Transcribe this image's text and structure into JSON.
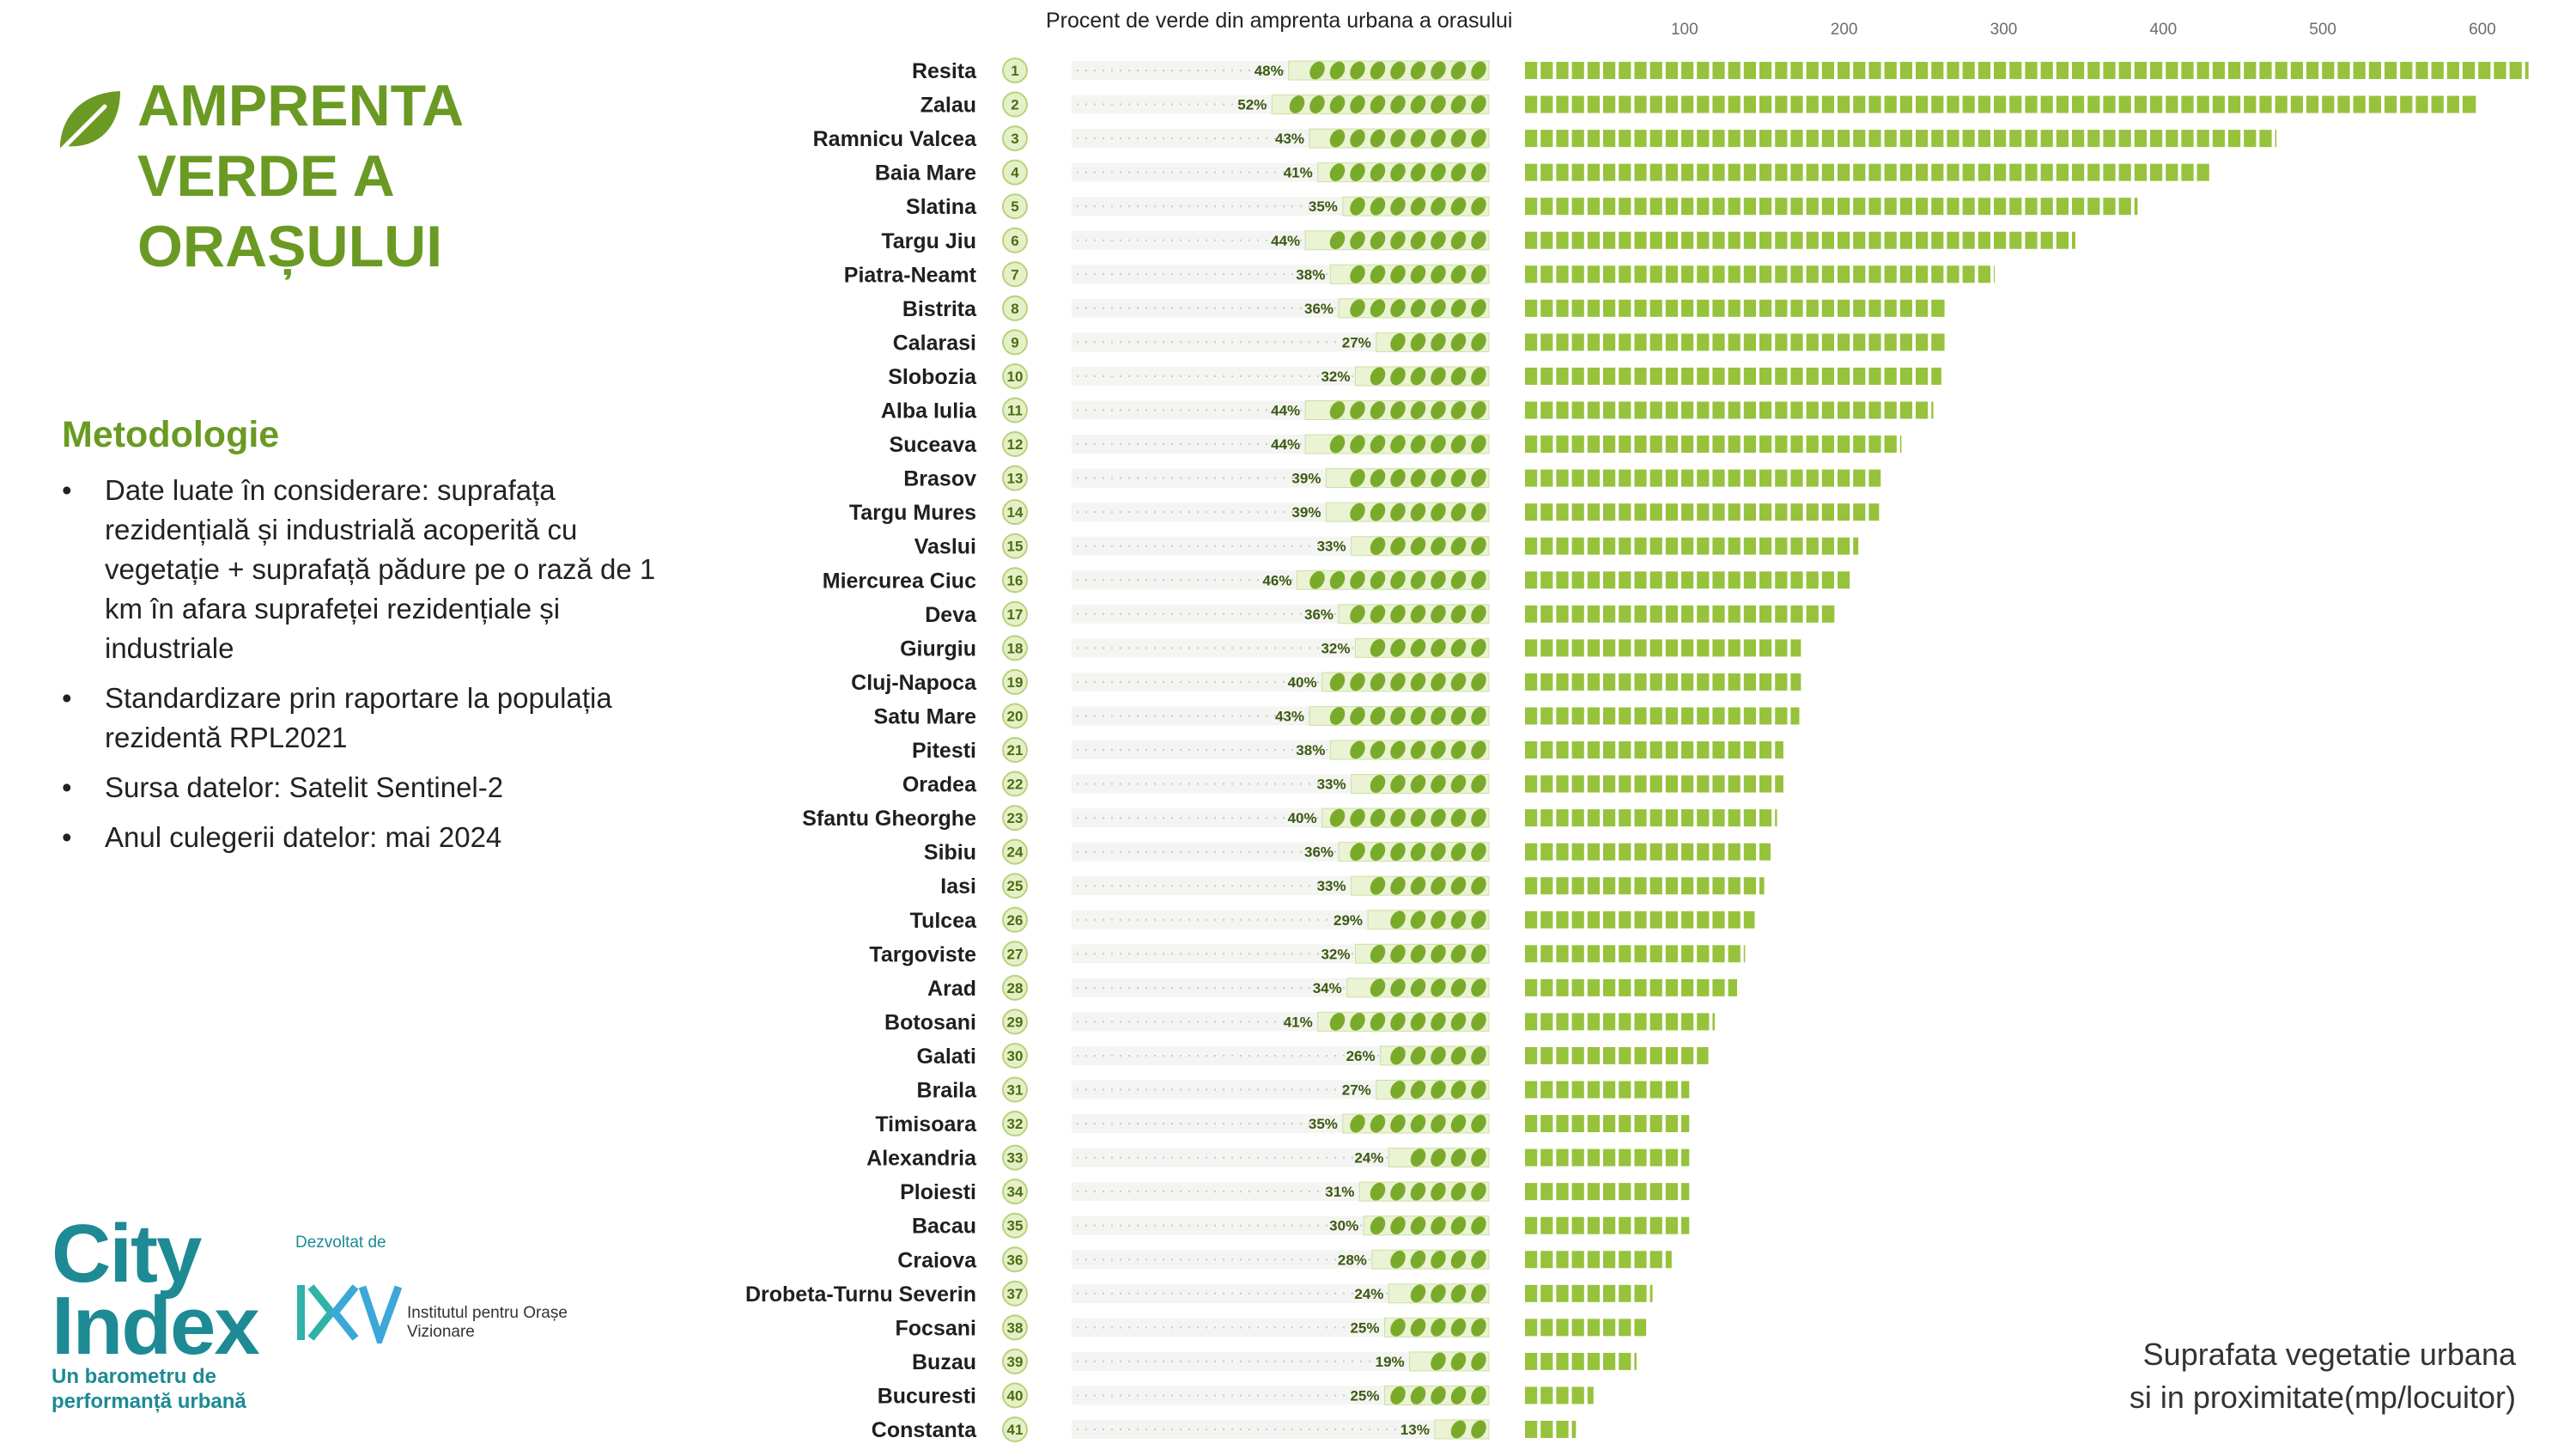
{
  "title": "AMPRENTA VERDE A ORAȘULUI",
  "methodology": {
    "heading": "Metodologie",
    "items": [
      "Date luate în considerare: suprafața rezidențială și industrială acoperită cu vegetație + suprafață pădure pe o rază de 1 km în afara suprafeței rezidențiale și industriale",
      "Standardizare prin raportare la populația rezidentă RPL2021",
      "Sursa datelor: Satelit Sentinel-2",
      "Anul culegerii datelor: mai 2024"
    ]
  },
  "branding": {
    "name_line1": "City",
    "name_line2": "Index",
    "tagline": "Un barometru de performanță urbană",
    "developed_by": "Dezvoltat de",
    "institute": "Institutul pentru Orașe Vizionare"
  },
  "colors": {
    "accent": "#6a9a23",
    "bar": "#97c23c",
    "leaf": "#7aaa2a",
    "brand": "#1d8a94"
  },
  "chart_data": [
    {
      "type": "bar",
      "orientation": "horizontal",
      "title": "Procent de verde din  amprenta urbana a orasului",
      "unit": "%",
      "categories": [
        "Resita",
        "Zalau",
        "Ramnicu Valcea",
        "Baia Mare",
        "Slatina",
        "Targu Jiu",
        "Piatra-Neamt",
        "Bistrita",
        "Calarasi",
        "Slobozia",
        "Alba Iulia",
        "Suceava",
        "Brasov",
        "Targu Mures",
        "Vaslui",
        "Miercurea Ciuc",
        "Deva",
        "Giurgiu",
        "Cluj-Napoca",
        "Satu Mare",
        "Pitesti",
        "Oradea",
        "Sfantu Gheorghe",
        "Sibiu",
        "Iasi",
        "Tulcea",
        "Targoviste",
        "Arad",
        "Botosani",
        "Galati",
        "Braila",
        "Timisoara",
        "Alexandria",
        "Ploiesti",
        "Bacau",
        "Craiova",
        "Drobeta-Turnu Severin",
        "Focsani",
        "Buzau",
        "Bucuresti",
        "Constanta"
      ],
      "ranks": [
        1,
        2,
        3,
        4,
        5,
        6,
        7,
        8,
        9,
        10,
        11,
        12,
        13,
        14,
        15,
        16,
        17,
        18,
        19,
        20,
        21,
        22,
        23,
        24,
        25,
        26,
        27,
        28,
        29,
        30,
        31,
        32,
        33,
        34,
        35,
        36,
        37,
        38,
        39,
        40,
        41
      ],
      "values": [
        48,
        52,
        43,
        41,
        35,
        44,
        38,
        36,
        27,
        32,
        44,
        44,
        39,
        39,
        33,
        46,
        36,
        32,
        40,
        43,
        38,
        33,
        40,
        36,
        33,
        29,
        32,
        34,
        41,
        26,
        27,
        35,
        24,
        31,
        30,
        28,
        24,
        25,
        19,
        25,
        13
      ],
      "data_labels": [
        "48%",
        "52%",
        "43%",
        "41%",
        "35%",
        "44%",
        "38%",
        "36%",
        "27%",
        "32%",
        "44%",
        "44%",
        "39%",
        "39%",
        "33%",
        "46%",
        "36%",
        "32%",
        "40%",
        "43%",
        "38%",
        "33%",
        "40%",
        "36%",
        "33%",
        "29%",
        "32%",
        "34%",
        "41%",
        "26%",
        "27%",
        "35%",
        "24%",
        "31%",
        "30%",
        "28%",
        "24%",
        "25%",
        "19%",
        "25%",
        "13%"
      ],
      "xlim": [
        0,
        100
      ],
      "legend": "none"
    },
    {
      "type": "bar",
      "orientation": "horizontal",
      "title": "Suprafata vegetatie urbana si in proximitate(mp/locuitor)",
      "title_line1": "Suprafata vegetatie urbana",
      "title_line2": "si in proximitate(mp/locuitor)",
      "categories": [
        "Resita",
        "Zalau",
        "Ramnicu Valcea",
        "Baia Mare",
        "Slatina",
        "Targu Jiu",
        "Piatra-Neamt",
        "Bistrita",
        "Calarasi",
        "Slobozia",
        "Alba Iulia",
        "Suceava",
        "Brasov",
        "Targu Mures",
        "Vaslui",
        "Miercurea Ciuc",
        "Deva",
        "Giurgiu",
        "Cluj-Napoca",
        "Satu Mare",
        "Pitesti",
        "Oradea",
        "Sfantu Gheorghe",
        "Sibiu",
        "Iasi",
        "Tulcea",
        "Targoviste",
        "Arad",
        "Botosani",
        "Galati",
        "Braila",
        "Timisoara",
        "Alexandria",
        "Ploiesti",
        "Bacau",
        "Craiova",
        "Drobeta-Turnu Severin",
        "Focsani",
        "Buzau",
        "Bucuresti",
        "Constanta"
      ],
      "values": [
        630,
        597,
        472,
        432,
        385,
        346,
        295,
        264,
        264,
        262,
        257,
        237,
        224,
        223,
        210,
        206,
        195,
        174,
        174,
        173,
        163,
        163,
        159,
        155,
        151,
        145,
        139,
        134,
        120,
        116,
        104,
        104,
        104,
        104,
        104,
        93,
        81,
        77,
        71,
        44,
        33
      ],
      "xticks": [
        100,
        200,
        300,
        400,
        500,
        600
      ],
      "xlim": [
        0,
        635
      ],
      "tick_position": "top",
      "legend": "none"
    }
  ]
}
